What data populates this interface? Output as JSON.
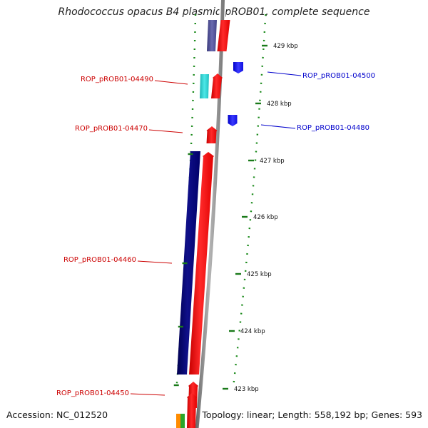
{
  "title": "Rhodococcus opacus B4 plasmid pROB01, complete sequence",
  "footer": {
    "accession": "Accession: NC_012520",
    "summary": "Topology: linear; Length: 558,192 bp; Genes: 593"
  },
  "colors": {
    "forward_label": "#cc0000",
    "reverse_label": "#0000cc",
    "backbone": "#8c8c8c",
    "tick": "#1a7a1a"
  },
  "scale_labels": [
    "429 kbp",
    "428 kbp",
    "427 kbp",
    "426 kbp",
    "425 kbp",
    "424 kbp",
    "423 kbp"
  ],
  "gene_labels": [
    {
      "text": "ROP_pROB01-04490",
      "strand": "forward"
    },
    {
      "text": "ROP_pROB01-04470",
      "strand": "forward"
    },
    {
      "text": "ROP_pROB01-04460",
      "strand": "forward"
    },
    {
      "text": "ROP_pROB01-04450",
      "strand": "forward"
    },
    {
      "text": "ROP_pROB01-04500",
      "strand": "reverse"
    },
    {
      "text": "ROP_pROB01-04480",
      "strand": "reverse"
    }
  ]
}
